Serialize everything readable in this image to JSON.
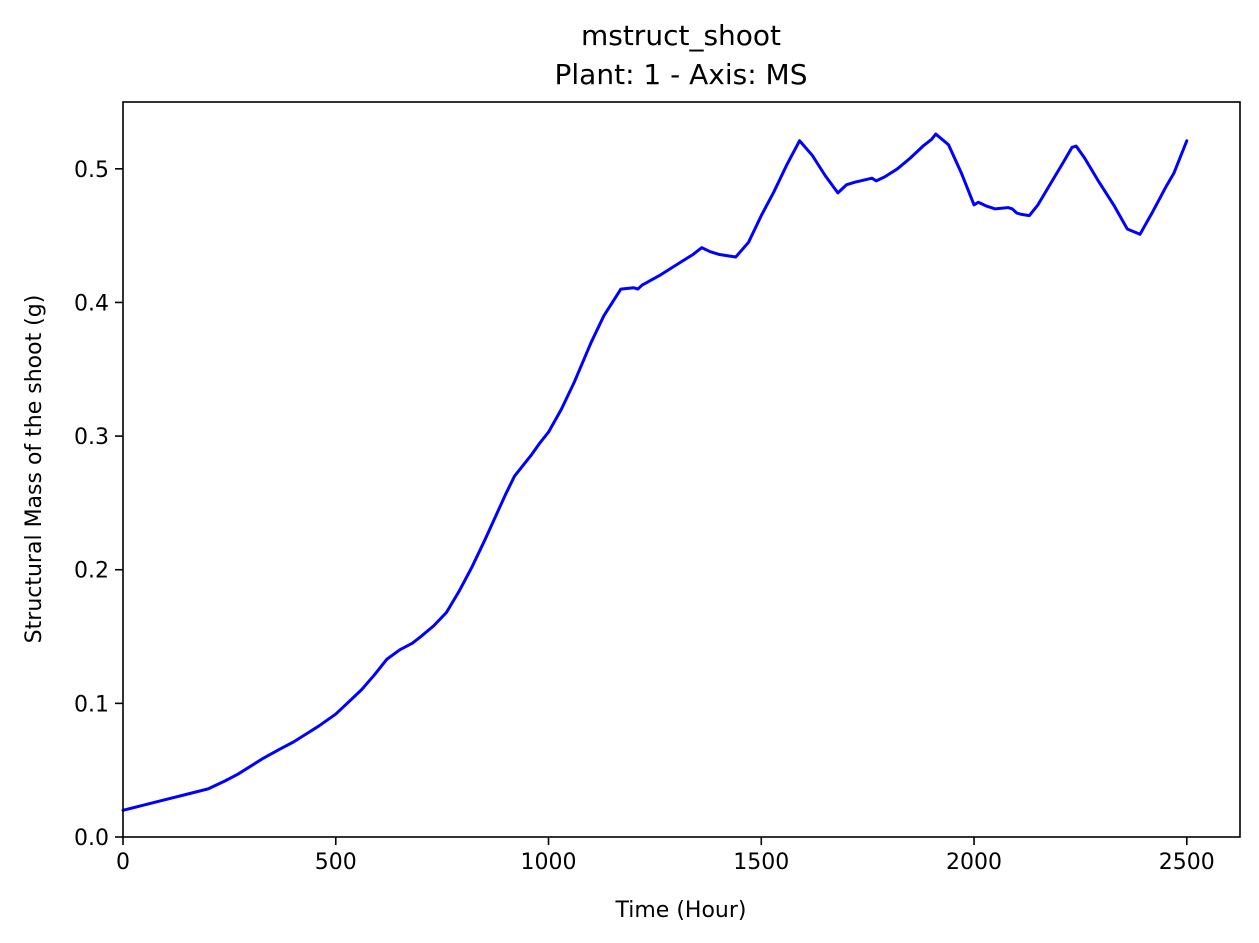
{
  "chart_data": {
    "type": "line",
    "title": "mstruct_shoot",
    "subtitle": "Plant: 1 - Axis: MS",
    "xlabel": "Time (Hour)",
    "ylabel": "Structural Mass of the shoot (g)",
    "xlim": [
      0,
      2625
    ],
    "ylim": [
      0,
      0.55
    ],
    "xticks": [
      0,
      500,
      1000,
      1500,
      2000,
      2500
    ],
    "yticks": [
      0.0,
      0.1,
      0.2,
      0.3,
      0.4,
      0.5
    ],
    "xtick_labels": [
      "0",
      "500",
      "1000",
      "1500",
      "2000",
      "2500"
    ],
    "ytick_labels": [
      "0.0",
      "0.1",
      "0.2",
      "0.3",
      "0.4",
      "0.5"
    ],
    "grid": false,
    "legend": "none",
    "series": [
      {
        "color": "#0000ff",
        "x": [
          0,
          50,
          100,
          150,
          200,
          240,
          270,
          300,
          330,
          370,
          400,
          430,
          460,
          500,
          530,
          560,
          590,
          620,
          650,
          680,
          700,
          730,
          760,
          790,
          820,
          850,
          870,
          900,
          920,
          940,
          960,
          980,
          1000,
          1030,
          1060,
          1100,
          1130,
          1170,
          1200,
          1210,
          1220,
          1260,
          1300,
          1340,
          1360,
          1380,
          1400,
          1440,
          1470,
          1500,
          1530,
          1560,
          1590,
          1620,
          1650,
          1680,
          1700,
          1720,
          1760,
          1770,
          1790,
          1820,
          1850,
          1880,
          1900,
          1910,
          1940,
          1970,
          2000,
          2010,
          2030,
          2050,
          2080,
          2090,
          2100,
          2110,
          2130,
          2150,
          2180,
          2210,
          2230,
          2240,
          2260,
          2290,
          2330,
          2360,
          2390,
          2420,
          2440,
          2450,
          2470,
          2500
        ],
        "y": [
          0.02,
          0.024,
          0.028,
          0.032,
          0.036,
          0.042,
          0.047,
          0.053,
          0.059,
          0.066,
          0.071,
          0.077,
          0.083,
          0.092,
          0.101,
          0.11,
          0.121,
          0.133,
          0.14,
          0.145,
          0.15,
          0.158,
          0.168,
          0.184,
          0.202,
          0.222,
          0.236,
          0.257,
          0.27,
          0.278,
          0.286,
          0.295,
          0.303,
          0.32,
          0.34,
          0.37,
          0.39,
          0.41,
          0.411,
          0.41,
          0.413,
          0.42,
          0.428,
          0.436,
          0.441,
          0.438,
          0.436,
          0.434,
          0.445,
          0.465,
          0.483,
          0.503,
          0.521,
          0.51,
          0.495,
          0.482,
          0.488,
          0.49,
          0.493,
          0.491,
          0.494,
          0.5,
          0.508,
          0.517,
          0.522,
          0.526,
          0.518,
          0.497,
          0.473,
          0.475,
          0.472,
          0.47,
          0.471,
          0.47,
          0.467,
          0.466,
          0.465,
          0.473,
          0.489,
          0.505,
          0.516,
          0.517,
          0.508,
          0.492,
          0.472,
          0.455,
          0.451,
          0.468,
          0.48,
          0.486,
          0.497,
          0.521
        ]
      }
    ]
  }
}
